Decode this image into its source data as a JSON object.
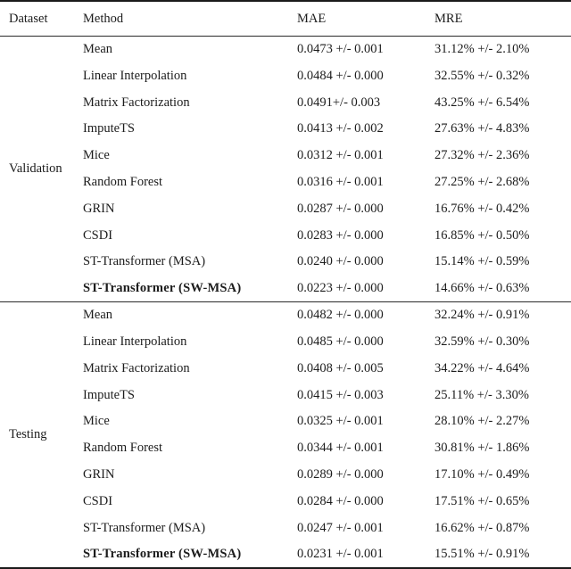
{
  "colors": {
    "background": "#ffffff",
    "text": "#1c1c1c",
    "rule_heavy": "#1a1a1a",
    "rule_light": "#2a2a2a"
  },
  "table": {
    "headers": [
      "Dataset",
      "Method",
      "MAE",
      "MRE"
    ],
    "groups": [
      {
        "dataset": "Validation",
        "rows": [
          {
            "method": "Mean",
            "mae": "0.0473 +/- 0.001",
            "mre": "31.12% +/- 2.10%",
            "bold": false
          },
          {
            "method": "Linear Interpolation",
            "mae": "0.0484 +/- 0.000",
            "mre": "32.55% +/- 0.32%",
            "bold": false
          },
          {
            "method": "Matrix Factorization",
            "mae": "0.0491+/- 0.003",
            "mre": "43.25% +/- 6.54%",
            "bold": false
          },
          {
            "method": "ImputeTS",
            "mae": "0.0413 +/- 0.002",
            "mre": "27.63% +/- 4.83%",
            "bold": false
          },
          {
            "method": "Mice",
            "mae": "0.0312 +/- 0.001",
            "mre": "27.32% +/- 2.36%",
            "bold": false
          },
          {
            "method": "Random Forest",
            "mae": "0.0316 +/- 0.001",
            "mre": "27.25% +/- 2.68%",
            "bold": false
          },
          {
            "method": "GRIN",
            "mae": "0.0287 +/- 0.000",
            "mre": "16.76% +/- 0.42%",
            "bold": false
          },
          {
            "method": "CSDI",
            "mae": "0.0283 +/- 0.000",
            "mre": "16.85% +/- 0.50%",
            "bold": false
          },
          {
            "method": "ST-Transformer (MSA)",
            "mae": "0.0240 +/- 0.000",
            "mre": "15.14% +/- 0.59%",
            "bold": false
          },
          {
            "method": "ST-Transformer (SW-MSA)",
            "mae": "0.0223 +/- 0.000",
            "mre": "14.66% +/- 0.63%",
            "bold": true
          }
        ]
      },
      {
        "dataset": "Testing",
        "rows": [
          {
            "method": "Mean",
            "mae": "0.0482 +/- 0.000",
            "mre": "32.24% +/- 0.91%",
            "bold": false
          },
          {
            "method": "Linear Interpolation",
            "mae": "0.0485 +/- 0.000",
            "mre": "32.59% +/- 0.30%",
            "bold": false
          },
          {
            "method": "Matrix Factorization",
            "mae": "0.0408 +/- 0.005",
            "mre": "34.22% +/- 4.64%",
            "bold": false
          },
          {
            "method": "ImputeTS",
            "mae": "0.0415 +/- 0.003",
            "mre": "25.11% +/- 3.30%",
            "bold": false
          },
          {
            "method": "Mice",
            "mae": "0.0325 +/- 0.001",
            "mre": "28.10% +/- 2.27%",
            "bold": false
          },
          {
            "method": "Random Forest",
            "mae": "0.0344 +/- 0.001",
            "mre": "30.81% +/- 1.86%",
            "bold": false
          },
          {
            "method": "GRIN",
            "mae": "0.0289 +/- 0.000",
            "mre": "17.10% +/- 0.49%",
            "bold": false
          },
          {
            "method": "CSDI",
            "mae": "0.0284 +/- 0.000",
            "mre": "17.51% +/- 0.65%",
            "bold": false
          },
          {
            "method": "ST-Transformer (MSA)",
            "mae": "0.0247 +/- 0.001",
            "mre": "16.62% +/- 0.87%",
            "bold": false
          },
          {
            "method": "ST-Transformer (SW-MSA)",
            "mae": "0.0231 +/- 0.001",
            "mre": "15.51% +/- 0.91%",
            "bold": true
          }
        ]
      }
    ]
  }
}
